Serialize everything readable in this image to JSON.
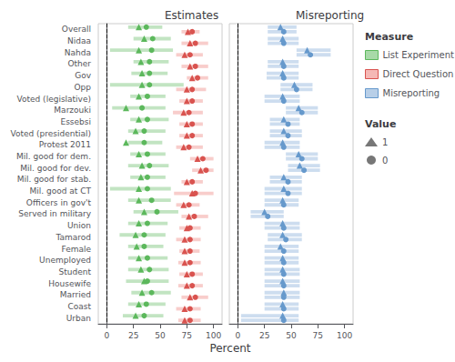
{
  "chart_data": {
    "type": "range_dot",
    "orientation": "horizontal",
    "xlabel": "Percent",
    "legend": "right",
    "grid": false,
    "legend_title": "Measure",
    "marker_legend_title": "Value",
    "markers": [
      {
        "name": "1",
        "marker": "triangle",
        "color": "#555555"
      },
      {
        "name": "0",
        "marker": "circle",
        "color": "#555555"
      }
    ],
    "categories": [
      "Overall",
      "Nidaa",
      "Nahda",
      "Other",
      "Gov",
      "Opp",
      "Voted (legislative)",
      "Marzouki",
      "Essebsi",
      "Voted (presidential)",
      "Protest 2011",
      "Mil. good for dem.",
      "Mil. good for dev.",
      "Mil. good for stab.",
      "Mil. good at CT",
      "Officers in gov't",
      "Served in military",
      "Union",
      "Tamarod",
      "Female",
      "Unemployed",
      "Student",
      "Housewife",
      "Married",
      "Coast",
      "Urban"
    ],
    "panels": [
      {
        "title": "Estimates",
        "xlim": [
          -8,
          108
        ],
        "xticks": [
          0,
          25,
          50,
          75,
          100
        ],
        "vline": 0,
        "series": [
          {
            "name": "List Experiment",
            "color": "#5cb85c",
            "ci_color": "#a8d9a8",
            "ci_low": [
              20,
              25,
              3,
              25,
              23,
              3,
              22,
              5,
              22,
              20,
              20,
              22,
              20,
              22,
              3,
              20,
              25,
              20,
              12,
              20,
              20,
              20,
              18,
              23,
              20,
              15
            ],
            "ci_high": [
              52,
              60,
              62,
              58,
              57,
              72,
              55,
              55,
              58,
              55,
              52,
              55,
              58,
              55,
              60,
              60,
              67,
              57,
              55,
              53,
              57,
              58,
              58,
              60,
              55,
              53
            ],
            "values": [
              [
                30,
                35,
                30,
                32,
                33,
                33,
                30,
                18,
                30,
                27,
                18,
                30,
                33,
                32,
                30,
                30,
                35,
                30,
                27,
                28,
                30,
                32,
                35,
                33,
                30,
                27
              ],
              [
                37,
                43,
                42,
                40,
                40,
                40,
                38,
                33,
                38,
                35,
                35,
                38,
                40,
                38,
                38,
                42,
                47,
                38,
                35,
                35,
                38,
                40,
                38,
                42,
                37,
                35
              ]
            ]
          },
          {
            "name": "Direct Question",
            "color": "#d9534f",
            "ci_color": "#f5b8b5",
            "ci_low": [
              70,
              70,
              65,
              70,
              75,
              65,
              68,
              62,
              68,
              68,
              65,
              78,
              80,
              70,
              63,
              65,
              70,
              68,
              65,
              68,
              67,
              68,
              67,
              70,
              65,
              67
            ],
            "ci_high": [
              87,
              95,
              90,
              95,
              95,
              93,
              90,
              90,
              90,
              90,
              90,
              100,
              100,
              90,
              100,
              87,
              95,
              88,
              88,
              87,
              88,
              90,
              90,
              95,
              88,
              88
            ],
            "values": [
              [
                76,
                78,
                73,
                78,
                80,
                75,
                75,
                72,
                75,
                75,
                72,
                85,
                88,
                75,
                80,
                72,
                77,
                75,
                73,
                73,
                73,
                75,
                75,
                78,
                73,
                73
              ],
              [
                80,
                83,
                78,
                83,
                85,
                80,
                80,
                77,
                80,
                80,
                77,
                90,
                93,
                80,
                83,
                77,
                82,
                78,
                78,
                78,
                78,
                80,
                80,
                83,
                78,
                78
              ]
            ]
          }
        ]
      },
      {
        "title": "Misreporting",
        "xlim": [
          -8,
          108
        ],
        "xticks": [
          0,
          25,
          50,
          75,
          100
        ],
        "vline": 0,
        "tick_labels": "x",
        "series": [
          {
            "name": "Misreporting",
            "color": "#6699CC",
            "ci_color": "#b8cfe8",
            "ci_low": [
              28,
              28,
              55,
              28,
              27,
              40,
              25,
              45,
              30,
              30,
              25,
              45,
              47,
              30,
              25,
              25,
              12,
              25,
              28,
              25,
              25,
              25,
              25,
              25,
              25,
              3
            ],
            "ci_high": [
              55,
              57,
              87,
              57,
              57,
              70,
              58,
              75,
              58,
              60,
              58,
              75,
              77,
              60,
              60,
              57,
              43,
              58,
              60,
              57,
              57,
              58,
              58,
              58,
              57,
              57
            ],
            "values": [
              [
                40,
                42,
                65,
                42,
                42,
                53,
                42,
                57,
                43,
                43,
                42,
                57,
                58,
                43,
                43,
                42,
                25,
                42,
                42,
                40,
                42,
                42,
                42,
                43,
                42,
                42
              ],
              [
                43,
                43,
                68,
                43,
                43,
                55,
                43,
                60,
                47,
                47,
                43,
                60,
                62,
                47,
                47,
                43,
                28,
                43,
                45,
                43,
                43,
                43,
                43,
                43,
                43,
                43
              ]
            ]
          }
        ]
      }
    ]
  }
}
